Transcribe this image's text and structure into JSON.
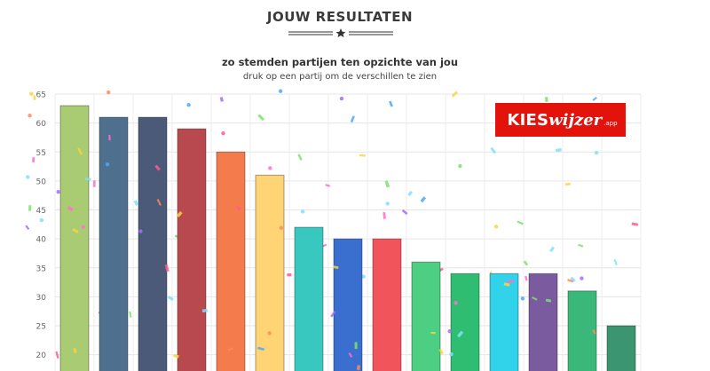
{
  "header": {
    "title": "JOUW RESULTATEN",
    "subtitle": "zo stemden partijen ten opzichte van jou",
    "hint": "druk op een partij om de verschillen te zien"
  },
  "logo": {
    "part1": "KIES",
    "part2": "wijzer",
    "part3": ".app"
  },
  "icons": {
    "divider": "star-icon"
  },
  "chart_data": {
    "type": "bar",
    "ylim": [
      18,
      65
    ],
    "yticks": [
      20,
      25,
      30,
      35,
      40,
      45,
      50,
      55,
      60,
      65
    ],
    "grid": true,
    "values": [
      63,
      61,
      61,
      59,
      55,
      51,
      42,
      40,
      40,
      36,
      34,
      34,
      34,
      31,
      25
    ],
    "colors": [
      "#a9cc73",
      "#4f6f8f",
      "#4c5a7a",
      "#b84a4f",
      "#f47c4c",
      "#ffd474",
      "#39c8c0",
      "#3a6fd0",
      "#f2545b",
      "#4ccf82",
      "#2fbd72",
      "#31d3ea",
      "#7b5ba0",
      "#39b879",
      "#3a9570"
    ]
  }
}
